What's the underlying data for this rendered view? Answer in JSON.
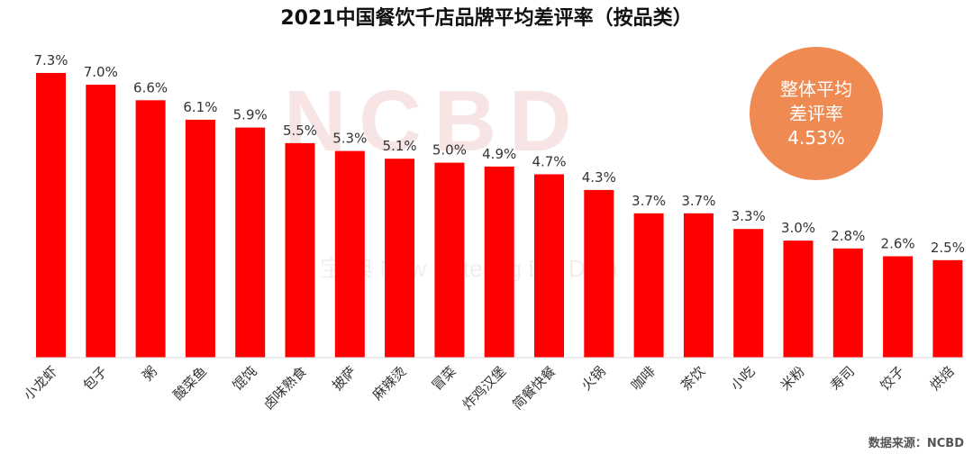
{
  "title": "2021中国餐饮千店品牌平均差评率（按品类）",
  "watermark": {
    "main": "NCBD",
    "sub": "宝 典  New Catering Big Data"
  },
  "badge": {
    "line1": "整体平均",
    "line2": "差评率",
    "value": "4.53%"
  },
  "source": "数据来源：NCBD",
  "colors": {
    "bar": "#ff0000",
    "badge": "#ef8a52"
  },
  "chart_data": {
    "type": "bar",
    "categories": [
      "小龙虾",
      "包子",
      "粥",
      "酸菜鱼",
      "馄饨",
      "卤味熟食",
      "披萨",
      "麻辣烫",
      "冒菜",
      "炸鸡汉堡",
      "简餐快餐",
      "火锅",
      "咖啡",
      "茶饮",
      "小吃",
      "米粉",
      "寿司",
      "饺子",
      "烘焙"
    ],
    "values": [
      7.3,
      7.0,
      6.6,
      6.1,
      5.9,
      5.5,
      5.3,
      5.1,
      5.0,
      4.9,
      4.7,
      4.3,
      3.7,
      3.7,
      3.3,
      3.0,
      2.8,
      2.6,
      2.5
    ],
    "value_labels": [
      "7.3%",
      "7.0%",
      "6.6%",
      "6.1%",
      "5.9%",
      "5.5%",
      "5.3%",
      "5.1%",
      "5.0%",
      "4.9%",
      "4.7%",
      "4.3%",
      "3.7%",
      "3.7%",
      "3.3%",
      "3.0%",
      "2.8%",
      "2.6%",
      "2.5%"
    ],
    "ylim": [
      0,
      7.3
    ],
    "grid": false,
    "legend": "none"
  }
}
